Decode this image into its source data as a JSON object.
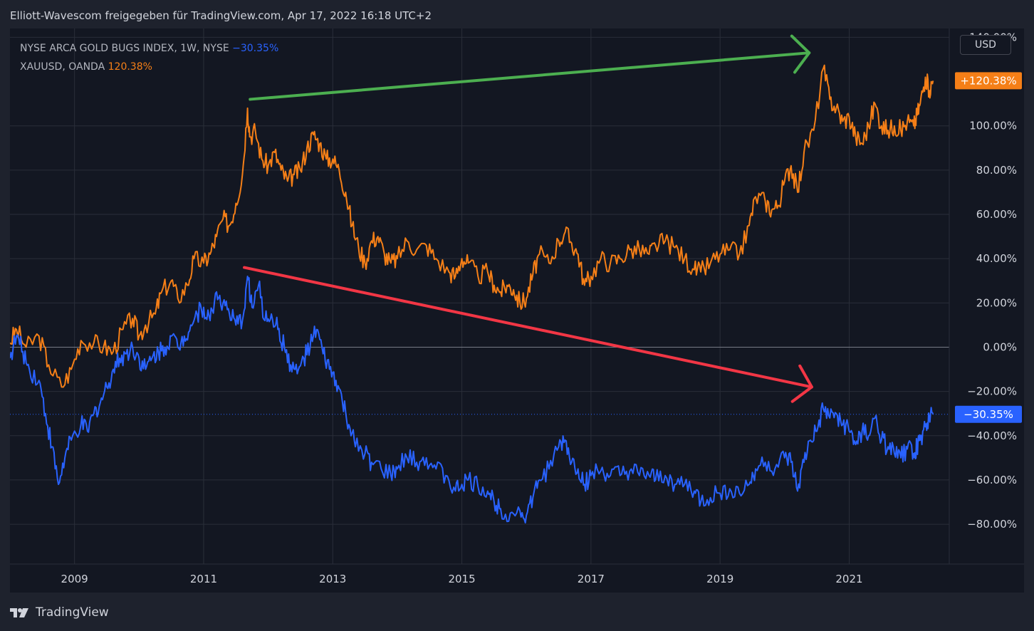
{
  "header": {
    "title": "Elliott-Wavescom freigegeben für TradingView.com, Apr 17, 2022 16:18 UTC+2"
  },
  "legend": {
    "series1_label": "NYSE ARCA GOLD BUGS INDEX, 1W, NYSE",
    "series1_value": "−30.35%",
    "series2_label": "XAUUSD, OANDA",
    "series2_value": "120.38%"
  },
  "axis": {
    "currency": "USD"
  },
  "footer": {
    "brand": "TradingView"
  },
  "colors": {
    "background": "#131722",
    "frame": "#1e222d",
    "gridline": "#2a2e39",
    "hgui": "#2962ff",
    "xauusd": "#f57f17",
    "green_arrow": "#4caf50",
    "red_arrow": "#f23645"
  },
  "chart_data": {
    "type": "line",
    "ylabel_unit": "%",
    "ylim": [
      -98,
      144
    ],
    "xlim": [
      2008.0,
      2022.55
    ],
    "y_ticks": [
      "140.00%",
      "100.00%",
      "80.00%",
      "60.00%",
      "40.00%",
      "20.00%",
      "0.00%",
      "−20.00%",
      "−40.00%",
      "−60.00%",
      "−80.00%"
    ],
    "y_tick_values": [
      140,
      100,
      80,
      60,
      40,
      20,
      0,
      -20,
      -40,
      -60,
      -80
    ],
    "x_ticks": [
      "2009",
      "2011",
      "2013",
      "2015",
      "2017",
      "2019",
      "2021"
    ],
    "x_tick_values": [
      2009,
      2011,
      2013,
      2015,
      2017,
      2019,
      2021
    ],
    "last_value_labels": [
      {
        "series": "XAUUSD",
        "text": "+120.38%",
        "value": 120.38
      },
      {
        "series": "HUI",
        "text": "−30.35%",
        "value": -30.35
      }
    ],
    "series": [
      {
        "name": "XAUUSD, OANDA",
        "color": "#f57f17",
        "points": [
          [
            2008.0,
            2
          ],
          [
            2008.1,
            8
          ],
          [
            2008.25,
            0
          ],
          [
            2008.45,
            5
          ],
          [
            2008.6,
            -8
          ],
          [
            2008.8,
            -18
          ],
          [
            2008.95,
            -10
          ],
          [
            2009.1,
            3
          ],
          [
            2009.3,
            2
          ],
          [
            2009.45,
            0
          ],
          [
            2009.6,
            -2
          ],
          [
            2009.75,
            8
          ],
          [
            2009.9,
            13
          ],
          [
            2010.0,
            5
          ],
          [
            2010.1,
            10
          ],
          [
            2010.25,
            15
          ],
          [
            2010.35,
            25
          ],
          [
            2010.5,
            30
          ],
          [
            2010.6,
            22
          ],
          [
            2010.75,
            28
          ],
          [
            2010.85,
            40
          ],
          [
            2011.0,
            38
          ],
          [
            2011.1,
            42
          ],
          [
            2011.2,
            50
          ],
          [
            2011.3,
            58
          ],
          [
            2011.4,
            55
          ],
          [
            2011.5,
            65
          ],
          [
            2011.6,
            78
          ],
          [
            2011.68,
            108
          ],
          [
            2011.72,
            95
          ],
          [
            2011.8,
            98
          ],
          [
            2011.9,
            85
          ],
          [
            2012.0,
            82
          ],
          [
            2012.1,
            88
          ],
          [
            2012.2,
            80
          ],
          [
            2012.3,
            75
          ],
          [
            2012.4,
            78
          ],
          [
            2012.5,
            80
          ],
          [
            2012.6,
            90
          ],
          [
            2012.7,
            96
          ],
          [
            2012.8,
            92
          ],
          [
            2012.9,
            85
          ],
          [
            2013.0,
            85
          ],
          [
            2013.1,
            80
          ],
          [
            2013.2,
            70
          ],
          [
            2013.3,
            55
          ],
          [
            2013.4,
            45
          ],
          [
            2013.5,
            38
          ],
          [
            2013.6,
            48
          ],
          [
            2013.7,
            50
          ],
          [
            2013.8,
            42
          ],
          [
            2013.9,
            38
          ],
          [
            2014.0,
            40
          ],
          [
            2014.15,
            48
          ],
          [
            2014.3,
            44
          ],
          [
            2014.45,
            46
          ],
          [
            2014.6,
            40
          ],
          [
            2014.8,
            34
          ],
          [
            2014.9,
            32
          ],
          [
            2015.0,
            40
          ],
          [
            2015.1,
            38
          ],
          [
            2015.25,
            32
          ],
          [
            2015.4,
            34
          ],
          [
            2015.5,
            28
          ],
          [
            2015.6,
            25
          ],
          [
            2015.7,
            28
          ],
          [
            2015.8,
            26
          ],
          [
            2015.9,
            20
          ],
          [
            2016.0,
            22
          ],
          [
            2016.1,
            33
          ],
          [
            2016.2,
            42
          ],
          [
            2016.35,
            38
          ],
          [
            2016.5,
            48
          ],
          [
            2016.6,
            52
          ],
          [
            2016.7,
            47
          ],
          [
            2016.8,
            42
          ],
          [
            2016.9,
            28
          ],
          [
            2017.0,
            32
          ],
          [
            2017.15,
            40
          ],
          [
            2017.3,
            38
          ],
          [
            2017.45,
            40
          ],
          [
            2017.6,
            44
          ],
          [
            2017.75,
            44
          ],
          [
            2017.9,
            42
          ],
          [
            2018.0,
            46
          ],
          [
            2018.15,
            48
          ],
          [
            2018.3,
            45
          ],
          [
            2018.45,
            40
          ],
          [
            2018.6,
            35
          ],
          [
            2018.7,
            34
          ],
          [
            2018.85,
            38
          ],
          [
            2019.0,
            42
          ],
          [
            2019.15,
            44
          ],
          [
            2019.3,
            42
          ],
          [
            2019.45,
            55
          ],
          [
            2019.55,
            68
          ],
          [
            2019.7,
            66
          ],
          [
            2019.8,
            62
          ],
          [
            2019.9,
            64
          ],
          [
            2020.0,
            75
          ],
          [
            2020.1,
            82
          ],
          [
            2020.2,
            70
          ],
          [
            2020.3,
            88
          ],
          [
            2020.45,
            98
          ],
          [
            2020.6,
            126
          ],
          [
            2020.7,
            112
          ],
          [
            2020.8,
            108
          ],
          [
            2020.9,
            102
          ],
          [
            2021.0,
            104
          ],
          [
            2021.1,
            95
          ],
          [
            2021.2,
            92
          ],
          [
            2021.3,
            100
          ],
          [
            2021.4,
            110
          ],
          [
            2021.5,
            100
          ],
          [
            2021.6,
            98
          ],
          [
            2021.7,
            100
          ],
          [
            2021.8,
            98
          ],
          [
            2021.9,
            102
          ],
          [
            2022.0,
            100
          ],
          [
            2022.05,
            105
          ],
          [
            2022.1,
            110
          ],
          [
            2022.18,
            122
          ],
          [
            2022.24,
            116
          ],
          [
            2022.3,
            120.38
          ]
        ]
      },
      {
        "name": "NYSE ARCA GOLD BUGS INDEX, 1W, NYSE",
        "color": "#2962ff",
        "points": [
          [
            2008.0,
            -5
          ],
          [
            2008.1,
            5
          ],
          [
            2008.2,
            -2
          ],
          [
            2008.3,
            -10
          ],
          [
            2008.45,
            -15
          ],
          [
            2008.55,
            -30
          ],
          [
            2008.65,
            -45
          ],
          [
            2008.75,
            -62
          ],
          [
            2008.85,
            -50
          ],
          [
            2008.95,
            -42
          ],
          [
            2009.1,
            -35
          ],
          [
            2009.2,
            -38
          ],
          [
            2009.3,
            -30
          ],
          [
            2009.4,
            -25
          ],
          [
            2009.5,
            -18
          ],
          [
            2009.6,
            -10
          ],
          [
            2009.7,
            -5
          ],
          [
            2009.8,
            -3
          ],
          [
            2009.9,
            0
          ],
          [
            2010.0,
            -5
          ],
          [
            2010.1,
            -10
          ],
          [
            2010.2,
            -5
          ],
          [
            2010.3,
            -2
          ],
          [
            2010.4,
            0
          ],
          [
            2010.5,
            5
          ],
          [
            2010.6,
            0
          ],
          [
            2010.7,
            5
          ],
          [
            2010.8,
            10
          ],
          [
            2010.9,
            15
          ],
          [
            2011.0,
            18
          ],
          [
            2011.1,
            12
          ],
          [
            2011.2,
            25
          ],
          [
            2011.3,
            20
          ],
          [
            2011.4,
            15
          ],
          [
            2011.5,
            10
          ],
          [
            2011.6,
            12
          ],
          [
            2011.68,
            32
          ],
          [
            2011.75,
            18
          ],
          [
            2011.85,
            28
          ],
          [
            2011.95,
            12
          ],
          [
            2012.05,
            15
          ],
          [
            2012.15,
            8
          ],
          [
            2012.25,
            0
          ],
          [
            2012.35,
            -8
          ],
          [
            2012.45,
            -12
          ],
          [
            2012.55,
            -5
          ],
          [
            2012.65,
            0
          ],
          [
            2012.75,
            8
          ],
          [
            2012.85,
            -3
          ],
          [
            2012.95,
            -10
          ],
          [
            2013.05,
            -15
          ],
          [
            2013.15,
            -25
          ],
          [
            2013.25,
            -35
          ],
          [
            2013.35,
            -45
          ],
          [
            2013.5,
            -48
          ],
          [
            2013.6,
            -52
          ],
          [
            2013.75,
            -55
          ],
          [
            2013.9,
            -58
          ],
          [
            2014.0,
            -55
          ],
          [
            2014.15,
            -50
          ],
          [
            2014.3,
            -52
          ],
          [
            2014.45,
            -50
          ],
          [
            2014.6,
            -55
          ],
          [
            2014.75,
            -58
          ],
          [
            2014.9,
            -65
          ],
          [
            2015.0,
            -62
          ],
          [
            2015.1,
            -60
          ],
          [
            2015.25,
            -63
          ],
          [
            2015.4,
            -65
          ],
          [
            2015.5,
            -70
          ],
          [
            2015.6,
            -73
          ],
          [
            2015.75,
            -75
          ],
          [
            2015.9,
            -74
          ],
          [
            2016.0,
            -76
          ],
          [
            2016.1,
            -68
          ],
          [
            2016.2,
            -60
          ],
          [
            2016.35,
            -55
          ],
          [
            2016.5,
            -45
          ],
          [
            2016.6,
            -42
          ],
          [
            2016.7,
            -52
          ],
          [
            2016.8,
            -55
          ],
          [
            2016.9,
            -62
          ],
          [
            2017.0,
            -58
          ],
          [
            2017.15,
            -56
          ],
          [
            2017.3,
            -58
          ],
          [
            2017.45,
            -58
          ],
          [
            2017.6,
            -56
          ],
          [
            2017.75,
            -58
          ],
          [
            2017.9,
            -58
          ],
          [
            2018.0,
            -60
          ],
          [
            2018.15,
            -58
          ],
          [
            2018.3,
            -62
          ],
          [
            2018.45,
            -62
          ],
          [
            2018.6,
            -65
          ],
          [
            2018.7,
            -70
          ],
          [
            2018.85,
            -68
          ],
          [
            2019.0,
            -66
          ],
          [
            2019.15,
            -64
          ],
          [
            2019.3,
            -66
          ],
          [
            2019.45,
            -62
          ],
          [
            2019.55,
            -55
          ],
          [
            2019.7,
            -52
          ],
          [
            2019.85,
            -55
          ],
          [
            2020.0,
            -50
          ],
          [
            2020.1,
            -52
          ],
          [
            2020.2,
            -65
          ],
          [
            2020.3,
            -52
          ],
          [
            2020.4,
            -42
          ],
          [
            2020.5,
            -38
          ],
          [
            2020.6,
            -28
          ],
          [
            2020.7,
            -32
          ],
          [
            2020.8,
            -30
          ],
          [
            2020.9,
            -35
          ],
          [
            2021.0,
            -38
          ],
          [
            2021.1,
            -44
          ],
          [
            2021.2,
            -38
          ],
          [
            2021.3,
            -40
          ],
          [
            2021.4,
            -32
          ],
          [
            2021.5,
            -42
          ],
          [
            2021.6,
            -45
          ],
          [
            2021.7,
            -48
          ],
          [
            2021.8,
            -50
          ],
          [
            2021.9,
            -46
          ],
          [
            2022.0,
            -48
          ],
          [
            2022.05,
            -45
          ],
          [
            2022.1,
            -42
          ],
          [
            2022.18,
            -36
          ],
          [
            2022.24,
            -32
          ],
          [
            2022.3,
            -30.35
          ]
        ]
      }
    ],
    "annotations": [
      {
        "type": "arrow",
        "color": "green",
        "from": [
          2011.72,
          112
        ],
        "to": [
          2020.38,
          133
        ]
      },
      {
        "type": "arrow",
        "color": "red",
        "from": [
          2011.63,
          36
        ],
        "to": [
          2020.42,
          -18
        ]
      }
    ]
  }
}
